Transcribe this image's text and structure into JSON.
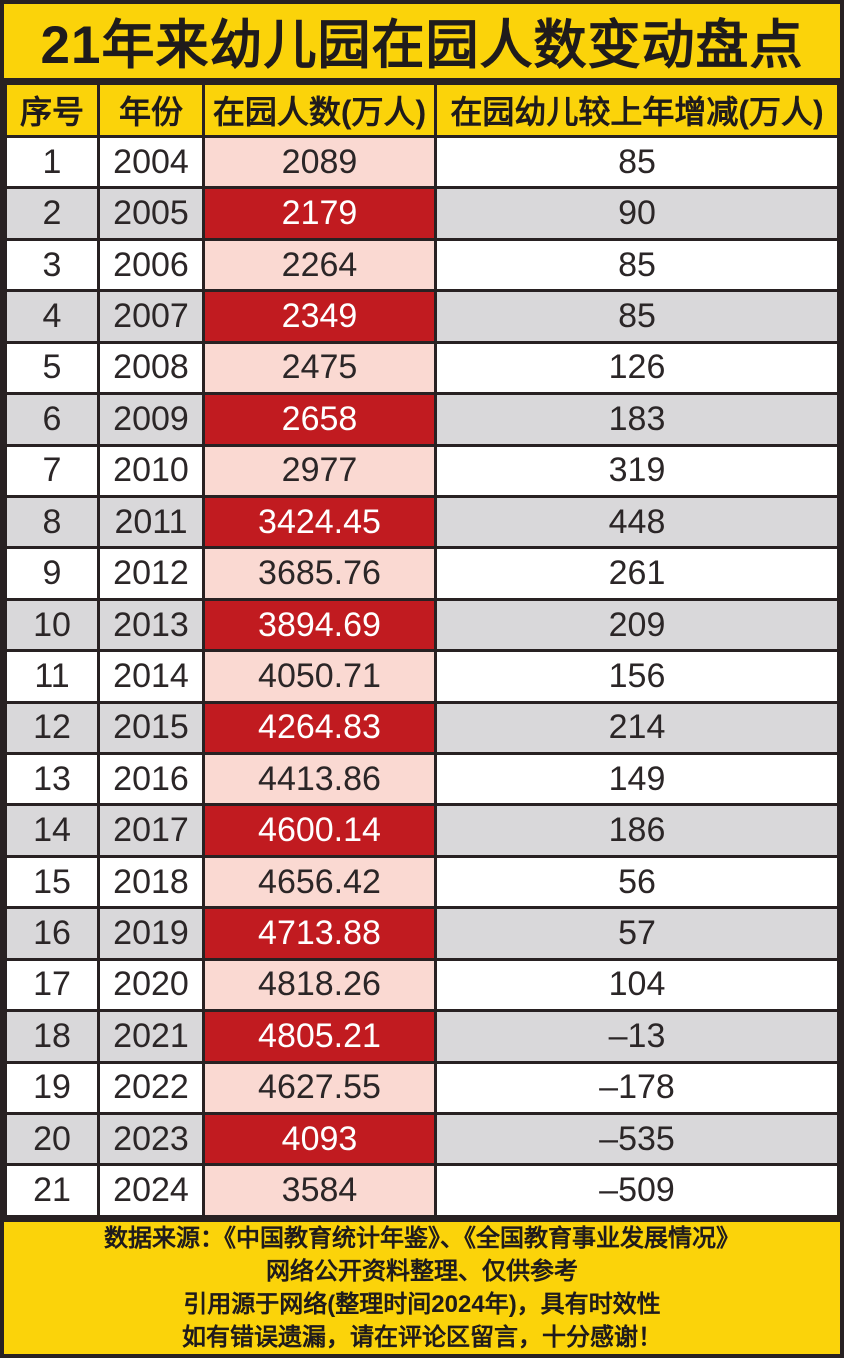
{
  "title": "21年来幼儿园在园人数变动盘点",
  "colors": {
    "banner_yellow": "#FBD30A",
    "enroll_pink": "#FAD9D2",
    "enroll_red": "#C11B20",
    "row_gray": "#D9D8DA",
    "row_white": "#FFFFFF",
    "grid_black": "#282122",
    "text_black": "#1F1B1C",
    "text_white": "#FFFFFF"
  },
  "table": {
    "headers": [
      "序号",
      "年份",
      "在园人数(万人)",
      "在园幼儿较上年增减(万人)"
    ],
    "rows": [
      [
        "1",
        "2004",
        "2089",
        "85"
      ],
      [
        "2",
        "2005",
        "2179",
        "90"
      ],
      [
        "3",
        "2006",
        "2264",
        "85"
      ],
      [
        "4",
        "2007",
        "2349",
        "85"
      ],
      [
        "5",
        "2008",
        "2475",
        "126"
      ],
      [
        "6",
        "2009",
        "2658",
        "183"
      ],
      [
        "7",
        "2010",
        "2977",
        "319"
      ],
      [
        "8",
        "2011",
        "3424.45",
        "448"
      ],
      [
        "9",
        "2012",
        "3685.76",
        "261"
      ],
      [
        "10",
        "2013",
        "3894.69",
        "209"
      ],
      [
        "11",
        "2014",
        "4050.71",
        "156"
      ],
      [
        "12",
        "2015",
        "4264.83",
        "214"
      ],
      [
        "13",
        "2016",
        "4413.86",
        "149"
      ],
      [
        "14",
        "2017",
        "4600.14",
        "186"
      ],
      [
        "15",
        "2018",
        "4656.42",
        "56"
      ],
      [
        "16",
        "2019",
        "4713.88",
        "57"
      ],
      [
        "17",
        "2020",
        "4818.26",
        "104"
      ],
      [
        "18",
        "2021",
        "4805.21",
        "–13"
      ],
      [
        "19",
        "2022",
        "4627.55",
        "–178"
      ],
      [
        "20",
        "2023",
        "4093",
        "–535"
      ],
      [
        "21",
        "2024",
        "3584",
        "–509"
      ]
    ]
  },
  "footer": {
    "lines": [
      "数据来源：《中国教育统计年鉴》、《全国教育事业发展情况》",
      "网络公开资料整理、仅供参考",
      "引用源于网络(整理时间2024年)，具有时效性",
      "如有错误遗漏，请在评论区留言，十分感谢！"
    ]
  },
  "chart_data": {
    "type": "table",
    "title": "21年来幼儿园在园人数变动盘点",
    "columns": [
      "序号",
      "年份",
      "在园人数(万人)",
      "在园幼儿较上年增减(万人)"
    ],
    "rows": [
      [
        1,
        2004,
        2089,
        85
      ],
      [
        2,
        2005,
        2179,
        90
      ],
      [
        3,
        2006,
        2264,
        85
      ],
      [
        4,
        2007,
        2349,
        85
      ],
      [
        5,
        2008,
        2475,
        126
      ],
      [
        6,
        2009,
        2658,
        183
      ],
      [
        7,
        2010,
        2977,
        319
      ],
      [
        8,
        2011,
        3424.45,
        448
      ],
      [
        9,
        2012,
        3685.76,
        261
      ],
      [
        10,
        2013,
        3894.69,
        209
      ],
      [
        11,
        2014,
        4050.71,
        156
      ],
      [
        12,
        2015,
        4264.83,
        214
      ],
      [
        13,
        2016,
        4413.86,
        149
      ],
      [
        14,
        2017,
        4600.14,
        186
      ],
      [
        15,
        2018,
        4656.42,
        56
      ],
      [
        16,
        2019,
        4713.88,
        57
      ],
      [
        17,
        2020,
        4818.26,
        104
      ],
      [
        18,
        2021,
        4805.21,
        -13
      ],
      [
        19,
        2022,
        4627.55,
        -178
      ],
      [
        20,
        2023,
        4093,
        -535
      ],
      [
        21,
        2024,
        3584,
        -509
      ]
    ]
  }
}
